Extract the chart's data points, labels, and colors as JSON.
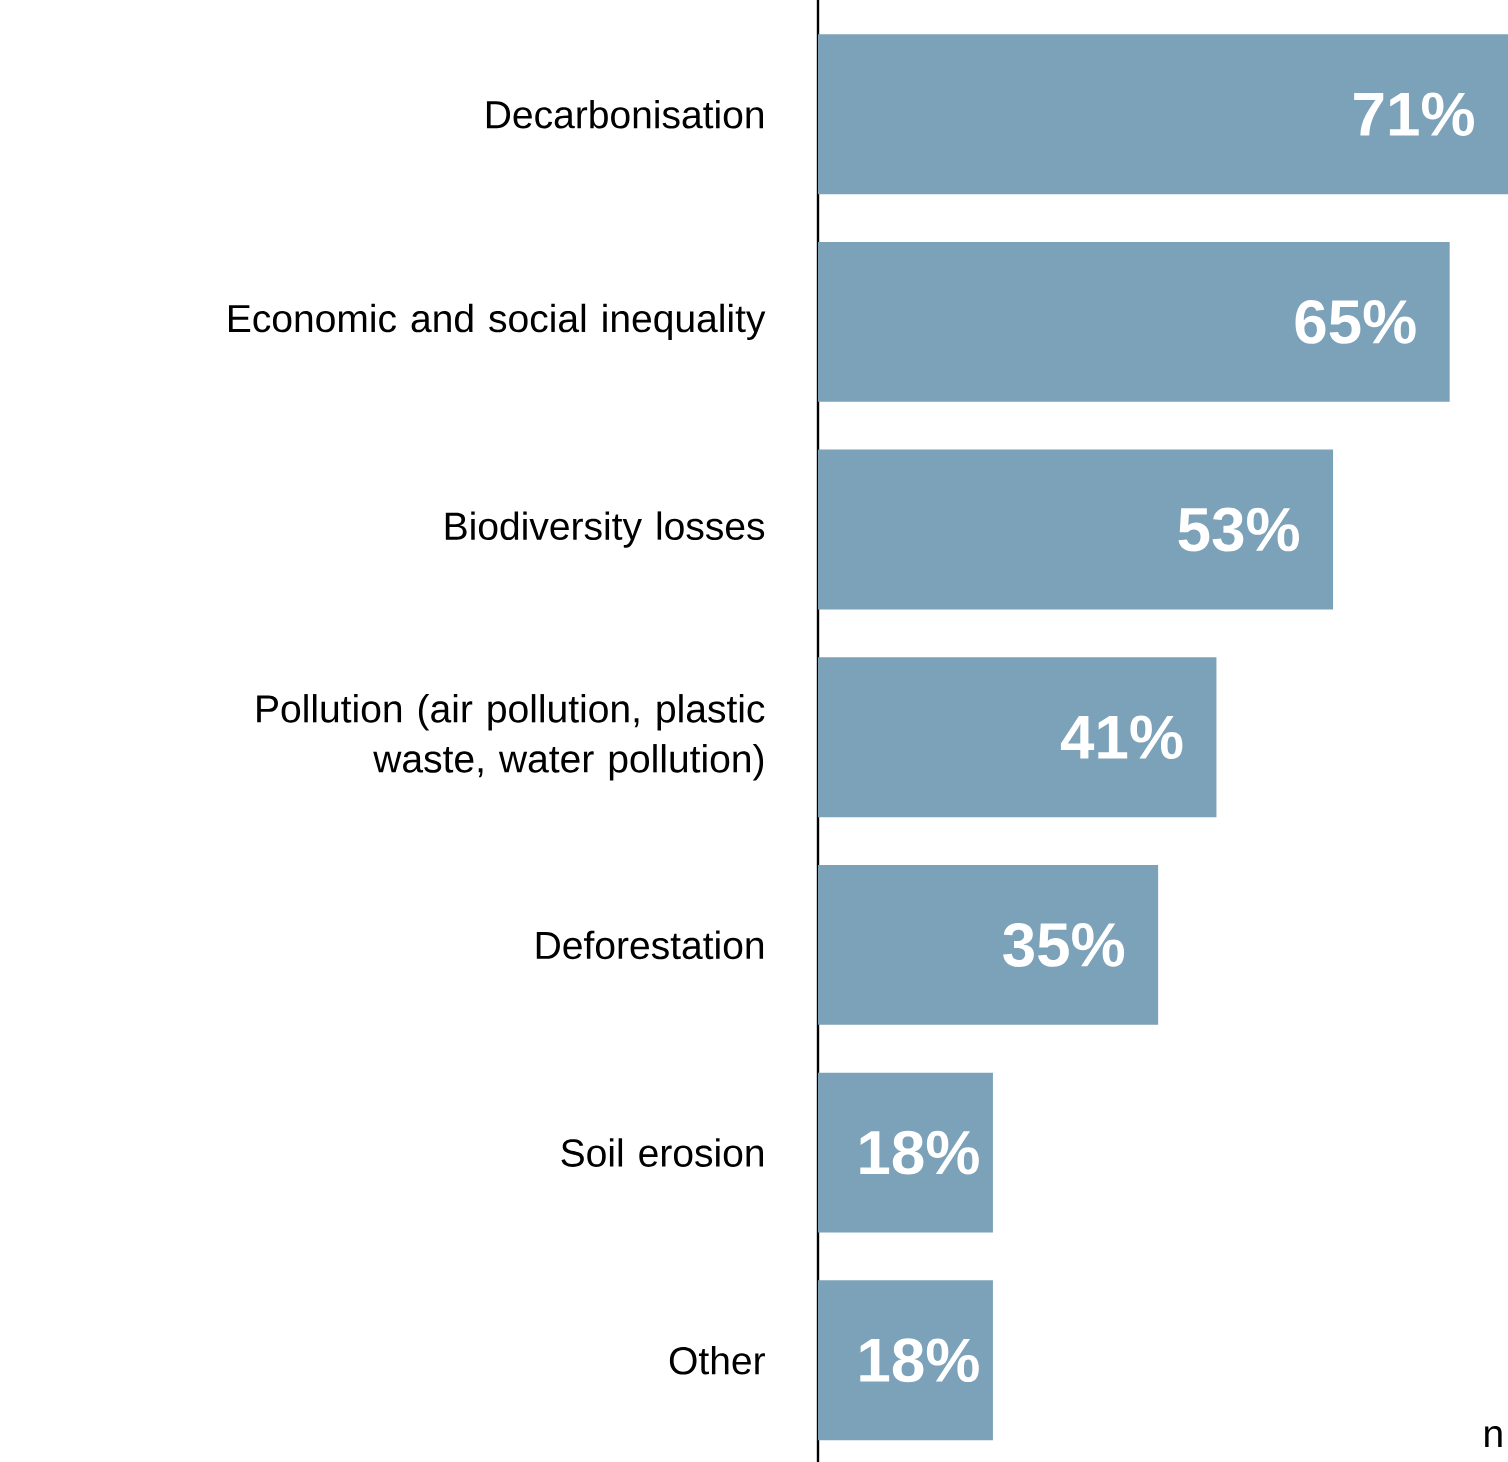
{
  "chart_data": {
    "type": "bar",
    "orientation": "horizontal",
    "categories": [
      "Decarbonisation",
      "Economic and social inequality",
      "Biodiversity losses",
      "Pollution (air pollution, plastic waste, water pollution)",
      "Deforestation",
      "Soil erosion",
      "Other"
    ],
    "values": [
      71,
      65,
      53,
      41,
      35,
      18,
      18
    ],
    "value_labels": [
      "71%",
      "65%",
      "53%",
      "41%",
      "35%",
      "18%",
      "18%"
    ],
    "color": "#7ba2b8",
    "xlim": [
      0,
      71
    ],
    "tick_labels": "y",
    "annotations": [
      "n"
    ]
  }
}
